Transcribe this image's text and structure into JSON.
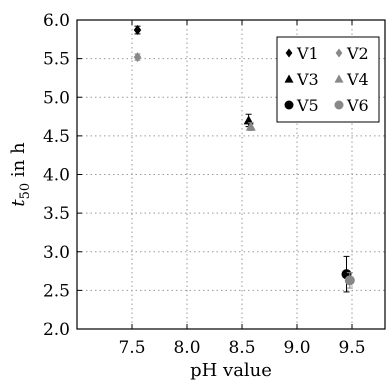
{
  "chart_data": {
    "type": "scatter",
    "xlabel": "pH value",
    "ylabel": "t50 in h",
    "ylabel_parts": {
      "base": "t",
      "sub": "50",
      "rest": " in h"
    },
    "xlim": [
      7.0,
      9.8
    ],
    "ylim": [
      2.0,
      6.0
    ],
    "xticks": [
      "7.5",
      "8.0",
      "8.5",
      "9.0",
      "9.5"
    ],
    "xtick_values": [
      7.5,
      8.0,
      8.5,
      9.0,
      9.5
    ],
    "yticks": [
      "2.0",
      "2.5",
      "3.0",
      "3.5",
      "4.0",
      "4.5",
      "5.0",
      "5.5",
      "6.0"
    ],
    "ytick_values": [
      2.0,
      2.5,
      3.0,
      3.5,
      4.0,
      4.5,
      5.0,
      5.5,
      6.0
    ],
    "grid": true,
    "grid_style": "dotted",
    "legend_position": "top-right",
    "legend_columns": 2,
    "series": [
      {
        "name": "V1",
        "marker": "diamond",
        "color": "#000000",
        "x": [
          7.55
        ],
        "y": [
          5.87
        ],
        "err": [
          0.05
        ]
      },
      {
        "name": "V2",
        "marker": "diamond",
        "color": "#888888",
        "x": [
          7.55
        ],
        "y": [
          5.52
        ],
        "err": [
          0.04
        ]
      },
      {
        "name": "V3",
        "marker": "triangle",
        "color": "#000000",
        "x": [
          8.56
        ],
        "y": [
          4.7
        ],
        "err": [
          0.08
        ]
      },
      {
        "name": "V4",
        "marker": "triangle",
        "color": "#888888",
        "x": [
          8.58
        ],
        "y": [
          4.62
        ],
        "err": [
          0.05
        ]
      },
      {
        "name": "V5",
        "marker": "circle",
        "color": "#000000",
        "x": [
          9.45
        ],
        "y": [
          2.71
        ],
        "err": [
          0.23
        ]
      },
      {
        "name": "V6",
        "marker": "circle",
        "color": "#888888",
        "x": [
          9.48
        ],
        "y": [
          2.63
        ],
        "err": [
          0.1
        ]
      }
    ]
  }
}
